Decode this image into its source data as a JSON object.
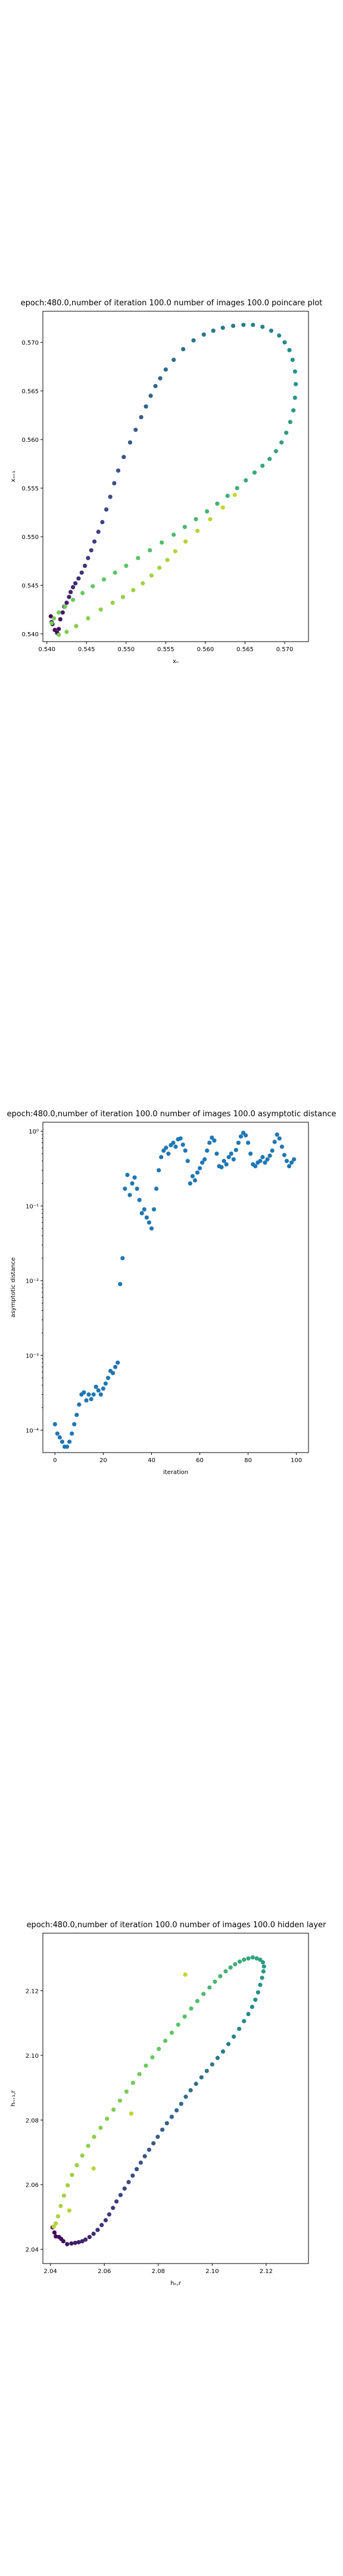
{
  "charts": [
    {
      "title": "epoch:480.0,number of iteration 100.0 number of images 100.0 poincare plot",
      "xlabel": "xₙ",
      "ylabel": "xₙ₊₁"
    },
    {
      "title": "epoch:480.0,number of iteration 100.0  number of images 100.0 asymptotic distance",
      "xlabel": "iteration",
      "ylabel": "asymptotic distance"
    },
    {
      "title": "epoch:480.0,number of iteration 100.0  number of images 100.0 hidden layer",
      "xlabel": "hₙ,r",
      "ylabel": "hₙ₊₁,r"
    }
  ],
  "colors": {
    "viridis_dark": "#3b2a5d",
    "viridis_teal": "#21918c",
    "viridis_green": "#5ec962",
    "viridis_yellow": "#c8d42e",
    "scatter_blue": "#1f77b4"
  },
  "chart_data": [
    {
      "type": "scatter",
      "title": "epoch:480.0,number of iteration 100.0 number of images 100.0 poincare plot",
      "xlabel": "xₙ",
      "ylabel": "xₙ₊₁",
      "xlim": [
        0.5395,
        0.573
      ],
      "ylim": [
        0.5392,
        0.5732
      ],
      "xticks": [
        0.54,
        0.545,
        0.55,
        0.555,
        0.56,
        0.565,
        0.57
      ],
      "yticks": [
        0.54,
        0.545,
        0.55,
        0.555,
        0.56,
        0.565,
        0.57
      ],
      "tick_format": 3,
      "log_y": false,
      "color_by_order": "viridis",
      "points": [
        [
          0.5405,
          0.5418
        ],
        [
          0.5406,
          0.5412
        ],
        [
          0.5407,
          0.541
        ],
        [
          0.541,
          0.5404
        ],
        [
          0.5413,
          0.5401
        ],
        [
          0.5415,
          0.5405
        ],
        [
          0.5417,
          0.5415
        ],
        [
          0.542,
          0.5422
        ],
        [
          0.5422,
          0.5428
        ],
        [
          0.5425,
          0.5432
        ],
        [
          0.5428,
          0.5438
        ],
        [
          0.543,
          0.5443
        ],
        [
          0.5433,
          0.5448
        ],
        [
          0.5436,
          0.5452
        ],
        [
          0.544,
          0.5457
        ],
        [
          0.5444,
          0.5463
        ],
        [
          0.5448,
          0.547
        ],
        [
          0.5452,
          0.5478
        ],
        [
          0.5456,
          0.5486
        ],
        [
          0.546,
          0.5495
        ],
        [
          0.5465,
          0.5505
        ],
        [
          0.547,
          0.5515
        ],
        [
          0.5475,
          0.5528
        ],
        [
          0.548,
          0.5541
        ],
        [
          0.5485,
          0.5555
        ],
        [
          0.549,
          0.5568
        ],
        [
          0.5497,
          0.5582
        ],
        [
          0.5505,
          0.5597
        ],
        [
          0.5512,
          0.561
        ],
        [
          0.5519,
          0.5623
        ],
        [
          0.5525,
          0.5634
        ],
        [
          0.5531,
          0.5645
        ],
        [
          0.5537,
          0.5655
        ],
        [
          0.5543,
          0.5663
        ],
        [
          0.555,
          0.5672
        ],
        [
          0.556,
          0.5682
        ],
        [
          0.5572,
          0.5693
        ],
        [
          0.5585,
          0.5702
        ],
        [
          0.5598,
          0.5708
        ],
        [
          0.561,
          0.5712
        ],
        [
          0.5622,
          0.5715
        ],
        [
          0.5635,
          0.5717
        ],
        [
          0.5648,
          0.5718
        ],
        [
          0.566,
          0.5718
        ],
        [
          0.5672,
          0.5716
        ],
        [
          0.5683,
          0.5712
        ],
        [
          0.5693,
          0.5707
        ],
        [
          0.57,
          0.57
        ],
        [
          0.5706,
          0.5692
        ],
        [
          0.571,
          0.5682
        ],
        [
          0.5713,
          0.567
        ],
        [
          0.5714,
          0.5657
        ],
        [
          0.5713,
          0.5643
        ],
        [
          0.5711,
          0.563
        ],
        [
          0.5707,
          0.5618
        ],
        [
          0.5702,
          0.5607
        ],
        [
          0.5696,
          0.5597
        ],
        [
          0.5689,
          0.5588
        ],
        [
          0.5681,
          0.558
        ],
        [
          0.5672,
          0.5573
        ],
        [
          0.5662,
          0.5566
        ],
        [
          0.5651,
          0.5558
        ],
        [
          0.564,
          0.555
        ],
        [
          0.5628,
          0.5542
        ],
        [
          0.5615,
          0.5534
        ],
        [
          0.5602,
          0.5526
        ],
        [
          0.5588,
          0.5518
        ],
        [
          0.5574,
          0.551
        ],
        [
          0.556,
          0.5502
        ],
        [
          0.5545,
          0.5494
        ],
        [
          0.553,
          0.5486
        ],
        [
          0.5515,
          0.5478
        ],
        [
          0.55,
          0.547
        ],
        [
          0.5486,
          0.5463
        ],
        [
          0.5472,
          0.5456
        ],
        [
          0.5458,
          0.5449
        ],
        [
          0.5445,
          0.5442
        ],
        [
          0.5433,
          0.5435
        ],
        [
          0.5423,
          0.5428
        ],
        [
          0.5415,
          0.5422
        ],
        [
          0.5409,
          0.5416
        ],
        [
          0.5406,
          0.5411
        ],
        [
          0.5415,
          0.5399
        ],
        [
          0.5425,
          0.5402
        ],
        [
          0.5437,
          0.5408
        ],
        [
          0.5452,
          0.5416
        ],
        [
          0.5468,
          0.5425
        ],
        [
          0.5483,
          0.5432
        ],
        [
          0.5496,
          0.5438
        ],
        [
          0.5509,
          0.5445
        ],
        [
          0.5521,
          0.5452
        ],
        [
          0.5532,
          0.546
        ],
        [
          0.5542,
          0.5468
        ],
        [
          0.5552,
          0.5476
        ],
        [
          0.5562,
          0.5485
        ],
        [
          0.5575,
          0.5495
        ],
        [
          0.559,
          0.5506
        ],
        [
          0.5606,
          0.5518
        ],
        [
          0.5622,
          0.553
        ],
        [
          0.5637,
          0.5543
        ]
      ]
    },
    {
      "type": "scatter",
      "title": "epoch:480.0,number of iteration 100.0  number of images 100.0 asymptotic distance",
      "xlabel": "iteration",
      "ylabel": "asymptotic distance",
      "xlim": [
        -5,
        105
      ],
      "ylim_log10": [
        -4.3,
        0.12
      ],
      "xticks": [
        0,
        20,
        40,
        60,
        80,
        100
      ],
      "yticks_log10": [
        -4,
        -3,
        -2,
        -1,
        0
      ],
      "ytick_labels": [
        "10⁻⁴",
        "10⁻³",
        "10⁻²",
        "10⁻¹",
        "10⁰"
      ],
      "log_y": true,
      "color": "#1f77b4",
      "x": [
        0,
        1,
        2,
        3,
        4,
        5,
        6,
        7,
        8,
        9,
        10,
        11,
        12,
        13,
        14,
        15,
        16,
        17,
        18,
        19,
        20,
        21,
        22,
        23,
        24,
        25,
        26,
        27,
        28,
        29,
        30,
        31,
        32,
        33,
        34,
        35,
        36,
        37,
        38,
        39,
        40,
        41,
        42,
        43,
        44,
        45,
        46,
        47,
        48,
        49,
        50,
        51,
        52,
        53,
        54,
        55,
        56,
        57,
        58,
        59,
        60,
        61,
        62,
        63,
        64,
        65,
        66,
        67,
        68,
        69,
        70,
        71,
        72,
        73,
        74,
        75,
        76,
        77,
        78,
        79,
        80,
        81,
        82,
        83,
        84,
        85,
        86,
        87,
        88,
        89,
        90,
        91,
        92,
        93,
        94,
        95,
        96,
        97,
        98,
        99
      ],
      "y": [
        0.00012,
        9e-05,
        8e-05,
        7e-05,
        6e-05,
        6e-05,
        7e-05,
        9e-05,
        0.00012,
        0.00016,
        0.00022,
        0.0003,
        0.00032,
        0.00025,
        0.0003,
        0.00026,
        0.0003,
        0.00038,
        0.00034,
        0.0003,
        0.00036,
        0.00042,
        0.0005,
        0.00062,
        0.00058,
        0.0007,
        0.0008,
        0.009,
        0.02,
        0.17,
        0.26,
        0.14,
        0.2,
        0.24,
        0.17,
        0.12,
        0.08,
        0.09,
        0.07,
        0.06,
        0.05,
        0.09,
        0.17,
        0.3,
        0.45,
        0.55,
        0.6,
        0.5,
        0.65,
        0.7,
        0.62,
        0.78,
        0.8,
        0.66,
        0.55,
        0.4,
        0.2,
        0.25,
        0.22,
        0.28,
        0.32,
        0.38,
        0.42,
        0.55,
        0.7,
        0.82,
        0.75,
        0.5,
        0.34,
        0.33,
        0.4,
        0.36,
        0.45,
        0.5,
        0.42,
        0.56,
        0.7,
        0.85,
        0.95,
        0.88,
        0.7,
        0.5,
        0.36,
        0.34,
        0.38,
        0.4,
        0.45,
        0.38,
        0.42,
        0.47,
        0.55,
        0.72,
        0.9,
        0.8,
        0.62,
        0.48,
        0.4,
        0.34,
        0.38,
        0.42
      ]
    },
    {
      "type": "scatter",
      "title": "epoch:480.0,number of iteration 100.0  number of images 100.0 hidden layer",
      "xlabel": "hₙ,r",
      "ylabel": "hₙ₊₁,r",
      "xlim": [
        2.0372,
        2.1357
      ],
      "ylim": [
        2.0356,
        2.1378
      ],
      "xticks": [
        2.04,
        2.06,
        2.08,
        2.1,
        2.12
      ],
      "yticks": [
        2.04,
        2.06,
        2.08,
        2.1,
        2.12
      ],
      "tick_format": 2,
      "log_y": false,
      "color_by_order": "viridis",
      "points": [
        [
          2.0408,
          2.0468
        ],
        [
          2.0415,
          2.0452
        ],
        [
          2.042,
          2.044
        ],
        [
          2.0432,
          2.0438
        ],
        [
          2.044,
          2.0432
        ],
        [
          2.0448,
          2.0425
        ],
        [
          2.0462,
          2.0416
        ],
        [
          2.0478,
          2.0418
        ],
        [
          2.0492,
          2.042
        ],
        [
          2.0505,
          2.0422
        ],
        [
          2.0518,
          2.0425
        ],
        [
          2.053,
          2.043
        ],
        [
          2.0545,
          2.0438
        ],
        [
          2.056,
          2.0448
        ],
        [
          2.0575,
          2.046
        ],
        [
          2.059,
          2.0475
        ],
        [
          2.0605,
          2.049
        ],
        [
          2.0618,
          2.0508
        ],
        [
          2.0632,
          2.0528
        ],
        [
          2.0645,
          2.0548
        ],
        [
          2.066,
          2.0568
        ],
        [
          2.0675,
          2.0588
        ],
        [
          2.069,
          2.0608
        ],
        [
          2.0705,
          2.0628
        ],
        [
          2.072,
          2.0648
        ],
        [
          2.0735,
          2.0668
        ],
        [
          2.075,
          2.0688
        ],
        [
          2.0766,
          2.0708
        ],
        [
          2.0782,
          2.0728
        ],
        [
          2.0798,
          2.0748
        ],
        [
          2.0815,
          2.077
        ],
        [
          2.0832,
          2.079
        ],
        [
          2.085,
          2.081
        ],
        [
          2.0868,
          2.083
        ],
        [
          2.0885,
          2.085
        ],
        [
          2.0902,
          2.0872
        ],
        [
          2.092,
          2.0892
        ],
        [
          2.094,
          2.0912
        ],
        [
          2.096,
          2.0932
        ],
        [
          2.098,
          2.0952
        ],
        [
          2.1,
          2.0972
        ],
        [
          2.102,
          2.0992
        ],
        [
          2.104,
          2.1012
        ],
        [
          2.106,
          2.1035
        ],
        [
          2.108,
          2.1058
        ],
        [
          2.11,
          2.1082
        ],
        [
          2.1118,
          2.1106
        ],
        [
          2.1134,
          2.1128
        ],
        [
          2.1148,
          2.115
        ],
        [
          2.116,
          2.1172
        ],
        [
          2.117,
          2.1195
        ],
        [
          2.1178,
          2.1218
        ],
        [
          2.1185,
          2.124
        ],
        [
          2.119,
          2.126
        ],
        [
          2.1192,
          2.1275
        ],
        [
          2.1188,
          2.1288
        ],
        [
          2.1178,
          2.1296
        ],
        [
          2.1165,
          2.13
        ],
        [
          2.115,
          2.1303
        ],
        [
          2.1134,
          2.13
        ],
        [
          2.1118,
          2.1296
        ],
        [
          2.1102,
          2.129
        ],
        [
          2.1085,
          2.1282
        ],
        [
          2.1068,
          2.1272
        ],
        [
          2.105,
          2.126
        ],
        [
          2.103,
          2.1245
        ],
        [
          2.101,
          2.1228
        ],
        [
          2.099,
          2.121
        ],
        [
          2.0968,
          2.119
        ],
        [
          2.0945,
          2.1168
        ],
        [
          2.0922,
          2.1145
        ],
        [
          2.0898,
          2.112
        ],
        [
          2.0874,
          2.1095
        ],
        [
          2.085,
          2.107
        ],
        [
          2.0826,
          2.1045
        ],
        [
          2.0802,
          2.102
        ],
        [
          2.0778,
          2.0994
        ],
        [
          2.0754,
          2.0968
        ],
        [
          2.073,
          2.0942
        ],
        [
          2.0706,
          2.0915
        ],
        [
          2.0682,
          2.0888
        ],
        [
          2.0658,
          2.086
        ],
        [
          2.0634,
          2.0832
        ],
        [
          2.061,
          2.0804
        ],
        [
          2.0586,
          2.0776
        ],
        [
          2.0562,
          2.0748
        ],
        [
          2.054,
          2.072
        ],
        [
          2.0518,
          2.069
        ],
        [
          2.0498,
          2.066
        ],
        [
          2.048,
          2.063
        ],
        [
          2.0464,
          2.0598
        ],
        [
          2.045,
          2.0566
        ],
        [
          2.0438,
          2.0534
        ],
        [
          2.0428,
          2.0502
        ],
        [
          2.042,
          2.048
        ],
        [
          2.0412,
          2.047
        ],
        [
          2.047,
          2.052
        ],
        [
          2.056,
          2.065
        ],
        [
          2.07,
          2.082
        ],
        [
          2.09,
          2.125
        ]
      ]
    }
  ]
}
